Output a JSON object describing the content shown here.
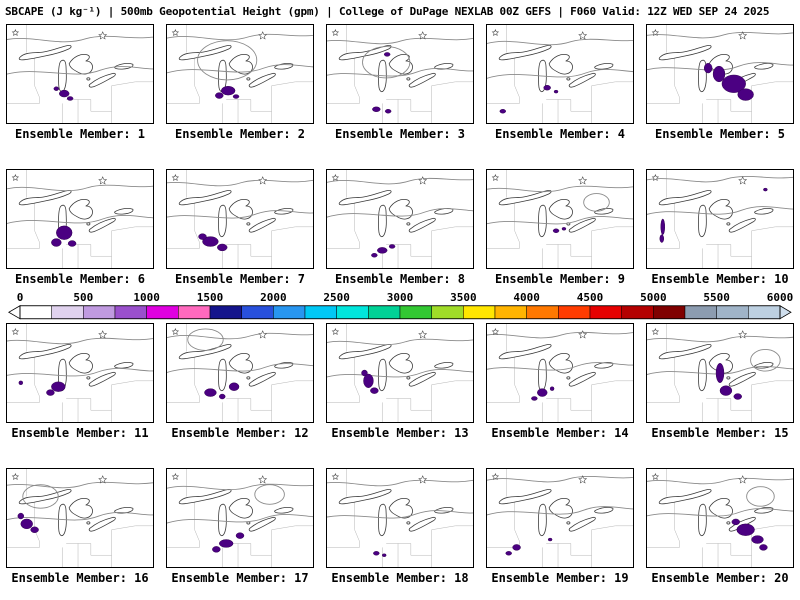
{
  "header": {
    "title": "SBCAPE (J kg⁻¹) | 500mb Geopotential Height (gpm) | College of DuPage NEXLAB 00Z GEFS | F060 Valid: 12Z WED SEP 24 2025"
  },
  "colorbar": {
    "parameter": "SBCAPE",
    "unit": "J kg⁻¹",
    "min": 0,
    "max": 6000,
    "segment_interval": 250,
    "ticks": [
      "0",
      "500",
      "1000",
      "1500",
      "2000",
      "2500",
      "3000",
      "3500",
      "4000",
      "4500",
      "5000",
      "5500",
      "6000"
    ],
    "colors": [
      "#ffffff",
      "#e0d2ee",
      "#c09ae0",
      "#9a50cc",
      "#e000e0",
      "#ff69be",
      "#14148c",
      "#2850dc",
      "#2896f0",
      "#00c8f5",
      "#00e6dc",
      "#00d296",
      "#32c832",
      "#a0dc28",
      "#ffe600",
      "#ffb400",
      "#ff7800",
      "#ff3c00",
      "#e60000",
      "#b40000",
      "#800000",
      "#8c9cb0",
      "#a0b4c8",
      "#bdd0e1"
    ],
    "left_arrow_color": "#ffffff",
    "right_arrow_color": "#cfdeed"
  },
  "map_style": {
    "cape_fill": "#4b0082",
    "cape_edge": "#30004f",
    "contour_color": "#8a8a8a",
    "lake_outline": "#3a3a3a",
    "state_border": "#b5b5b5",
    "region": "Great Lakes"
  },
  "panels": [
    {
      "member": 1,
      "label": "Ensemble Member: 1",
      "shift": [
        0,
        0
      ],
      "loop": null,
      "blobs": [
        [
          58,
          70,
          5,
          3.5
        ],
        [
          50,
          65,
          2.5,
          2
        ],
        [
          64,
          75,
          3,
          2
        ]
      ]
    },
    {
      "member": 2,
      "label": "Ensemble Member: 2",
      "shift": [
        3,
        -2
      ],
      "loop": [
        58,
        38,
        30,
        20
      ],
      "blobs": [
        [
          62,
          67,
          7,
          4.5
        ],
        [
          53,
          72,
          4,
          3
        ],
        [
          70,
          73,
          3,
          2
        ]
      ]
    },
    {
      "member": 3,
      "label": "Ensemble Member: 3",
      "shift": [
        -4,
        2
      ],
      "loop": [
        64,
        36,
        24,
        16
      ],
      "blobs": [
        [
          61,
          30,
          3,
          2
        ],
        [
          50,
          86,
          4,
          2.5
        ],
        [
          62,
          88,
          3,
          2
        ]
      ]
    },
    {
      "member": 4,
      "label": "Ensemble Member: 4",
      "shift": [
        5,
        3
      ],
      "loop": null,
      "blobs": [
        [
          61,
          64,
          3.5,
          2.5
        ],
        [
          16,
          88,
          3,
          2
        ],
        [
          70,
          68,
          2,
          1.5
        ]
      ]
    },
    {
      "member": 5,
      "label": "Ensemble Member: 5",
      "shift": [
        -2,
        -4
      ],
      "loop": null,
      "blobs": [
        [
          88,
          60,
          12,
          9
        ],
        [
          73,
          50,
          6,
          8
        ],
        [
          100,
          71,
          8,
          6
        ],
        [
          62,
          44,
          4,
          5
        ]
      ]
    },
    {
      "member": 6,
      "label": "Ensemble Member: 6",
      "shift": [
        2,
        4
      ],
      "loop": null,
      "blobs": [
        [
          58,
          64,
          8,
          7
        ],
        [
          50,
          74,
          5,
          4
        ],
        [
          66,
          75,
          4,
          3
        ]
      ]
    },
    {
      "member": 7,
      "label": "Ensemble Member: 7",
      "shift": [
        -5,
        -1
      ],
      "loop": null,
      "blobs": [
        [
          44,
          73,
          8,
          5
        ],
        [
          56,
          79,
          5,
          3.5
        ],
        [
          36,
          68,
          4,
          3
        ]
      ]
    },
    {
      "member": 8,
      "label": "Ensemble Member: 8",
      "shift": [
        4,
        -3
      ],
      "loop": null,
      "blobs": [
        [
          56,
          82,
          5,
          3
        ],
        [
          66,
          78,
          3,
          2
        ],
        [
          48,
          87,
          3,
          2
        ]
      ]
    },
    {
      "member": 9,
      "label": "Ensemble Member: 9",
      "shift": [
        -1,
        5
      ],
      "loop": [
        112,
        28,
        13,
        9
      ],
      "blobs": [
        [
          70,
          62,
          3,
          2
        ],
        [
          78,
          60,
          2,
          1.5
        ]
      ]
    },
    {
      "member": 10,
      "label": "Ensemble Member: 10",
      "shift": [
        1,
        -5
      ],
      "loop": null,
      "blobs": [
        [
          16,
          58,
          2,
          8
        ],
        [
          15,
          70,
          2,
          4
        ],
        [
          120,
          20,
          2,
          1.5
        ]
      ]
    },
    {
      "member": 11,
      "label": "Ensemble Member: 11",
      "shift": [
        -3,
        3
      ],
      "loop": null,
      "blobs": [
        [
          52,
          64,
          7,
          5
        ],
        [
          44,
          70,
          4,
          3
        ],
        [
          14,
          60,
          2,
          2
        ]
      ]
    },
    {
      "member": 12,
      "label": "Ensemble Member: 12",
      "shift": [
        5,
        -2
      ],
      "loop": [
        34,
        18,
        18,
        11
      ],
      "blobs": [
        [
          44,
          70,
          6,
          4
        ],
        [
          68,
          64,
          5,
          4
        ],
        [
          56,
          74,
          3,
          2.5
        ]
      ]
    },
    {
      "member": 13,
      "label": "Ensemble Member: 13",
      "shift": [
        0,
        4
      ],
      "loop": null,
      "blobs": [
        [
          42,
          58,
          5,
          7
        ],
        [
          48,
          68,
          4,
          3
        ],
        [
          38,
          50,
          3,
          3
        ]
      ]
    },
    {
      "member": 14,
      "label": "Ensemble Member: 14",
      "shift": [
        -4,
        -3
      ],
      "loop": null,
      "blobs": [
        [
          56,
          70,
          5,
          4
        ],
        [
          48,
          76,
          3,
          2
        ],
        [
          66,
          66,
          2,
          2
        ]
      ]
    },
    {
      "member": 15,
      "label": "Ensemble Member: 15",
      "shift": [
        2,
        1
      ],
      "loop": [
        118,
        36,
        15,
        11
      ],
      "blobs": [
        [
          74,
          50,
          4,
          10
        ],
        [
          80,
          68,
          6,
          5
        ],
        [
          92,
          74,
          4,
          3
        ]
      ]
    },
    {
      "member": 16,
      "label": "Ensemble Member: 16",
      "shift": [
        -2,
        2
      ],
      "loop": [
        36,
        26,
        18,
        12
      ],
      "blobs": [
        [
          20,
          56,
          6,
          5
        ],
        [
          28,
          62,
          4,
          3
        ],
        [
          14,
          48,
          3,
          3
        ]
      ]
    },
    {
      "member": 17,
      "label": "Ensemble Member: 17",
      "shift": [
        4,
        4
      ],
      "loop": [
        100,
        22,
        15,
        10
      ],
      "blobs": [
        [
          60,
          76,
          7,
          4
        ],
        [
          74,
          68,
          4,
          3
        ],
        [
          50,
          82,
          4,
          3
        ]
      ]
    },
    {
      "member": 18,
      "label": "Ensemble Member: 18",
      "shift": [
        -5,
        0
      ],
      "loop": null,
      "blobs": [
        [
          50,
          86,
          3,
          2
        ],
        [
          58,
          88,
          2,
          1.5
        ]
      ]
    },
    {
      "member": 19,
      "label": "Ensemble Member: 19",
      "shift": [
        3,
        -4
      ],
      "loop": null,
      "blobs": [
        [
          30,
          80,
          4,
          3
        ],
        [
          22,
          86,
          3,
          2
        ],
        [
          64,
          72,
          2,
          1.5
        ]
      ]
    },
    {
      "member": 20,
      "label": "Ensemble Member: 20",
      "shift": [
        -1,
        -2
      ],
      "loop": [
        116,
        30,
        14,
        10
      ],
      "blobs": [
        [
          100,
          62,
          9,
          6
        ],
        [
          112,
          72,
          6,
          4
        ],
        [
          90,
          54,
          4,
          3
        ],
        [
          118,
          80,
          4,
          3
        ]
      ]
    }
  ]
}
